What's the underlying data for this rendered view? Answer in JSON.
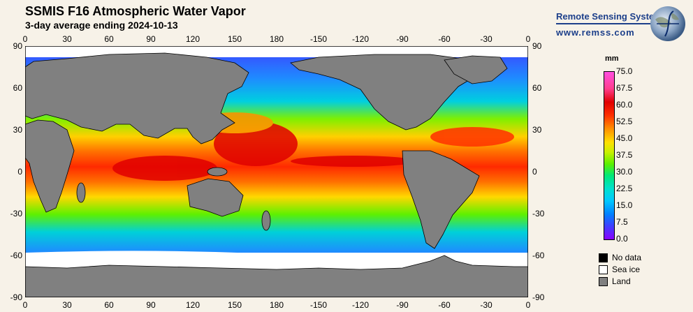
{
  "header": {
    "title": "SSMIS F16 Atmospheric Water Vapor",
    "subtitle": "3-day average ending 2024-10-13"
  },
  "branding": {
    "name": "Remote Sensing Systems",
    "url": "www.remss.com"
  },
  "map": {
    "lon_ticks": [
      "0",
      "30",
      "60",
      "90",
      "120",
      "150",
      "180",
      "-150",
      "-120",
      "-90",
      "-60",
      "-30",
      "0"
    ],
    "lat_ticks": [
      "90",
      "60",
      "30",
      "0",
      "-30",
      "-60",
      "-90"
    ],
    "land_color": "#808080",
    "sea_ice_color": "#ffffff",
    "no_data_color": "#000000"
  },
  "colorbar": {
    "unit": "mm",
    "labels": [
      "75.0",
      "67.5",
      "60.0",
      "52.5",
      "45.0",
      "37.5",
      "30.0",
      "22.5",
      "15.0",
      "7.5",
      "0.0"
    ],
    "min": 0.0,
    "max": 75.0,
    "colors": [
      "#8a00ff",
      "#3f3fff",
      "#0080ff",
      "#00c8ff",
      "#00e0d0",
      "#00e87a",
      "#5cf000",
      "#c8f000",
      "#ffe000",
      "#ff9000",
      "#ff3000",
      "#e00000",
      "#ff3e8e",
      "#ff4fe0"
    ]
  },
  "legend": [
    {
      "label": "No data",
      "color": "#000000"
    },
    {
      "label": "Sea ice",
      "color": "#ffffff"
    },
    {
      "label": "Land",
      "color": "#808080"
    }
  ]
}
